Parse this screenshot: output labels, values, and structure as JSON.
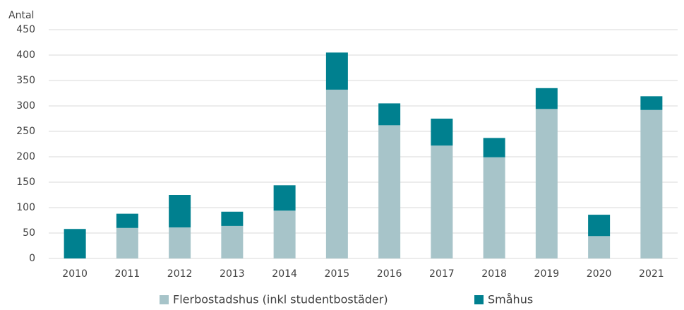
{
  "chart_data": {
    "type": "stacked_bar",
    "y_label": "Antal",
    "categories": [
      "2010",
      "2011",
      "2012",
      "2013",
      "2014",
      "2015",
      "2016",
      "2017",
      "2018",
      "2019",
      "2020",
      "2021"
    ],
    "series": [
      {
        "name": "Flerbostadshus (inkl studentbostäder)",
        "color": "#a7c4c9",
        "values": [
          0,
          60,
          61,
          64,
          94,
          332,
          262,
          222,
          199,
          294,
          44,
          292
        ]
      },
      {
        "name": "Småhus",
        "color": "#00808f",
        "values": [
          58,
          28,
          64,
          28,
          50,
          73,
          43,
          53,
          38,
          41,
          42,
          27
        ]
      }
    ],
    "ylim": [
      0,
      450
    ],
    "yticks": [
      0,
      50,
      100,
      150,
      200,
      250,
      300,
      350,
      400,
      450
    ],
    "grid": true,
    "legend": "bottom"
  }
}
